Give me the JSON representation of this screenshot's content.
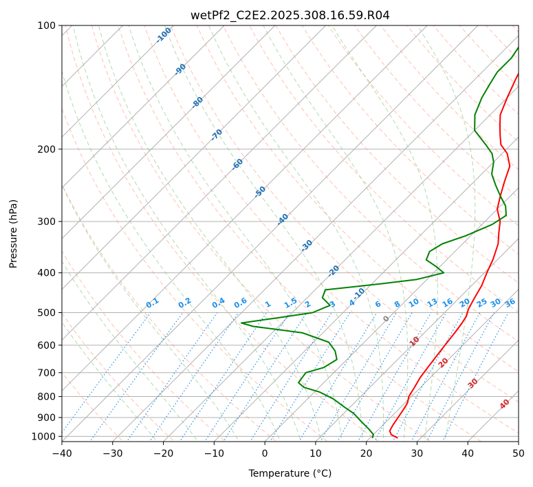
{
  "chart_data": {
    "type": "line",
    "subtype": "skew-T log-P diagram",
    "title": "wetPf2_C2E2.2025.308.16.59.R04",
    "xlabel": "Temperature (°C)",
    "ylabel": "Pressure (hPa)",
    "xlim": [
      -40,
      50
    ],
    "ylim": [
      1030,
      100
    ],
    "y_scale": "log",
    "grid": true,
    "x_ticks": [
      "−40",
      "−30",
      "−20",
      "−10",
      "0",
      "10",
      "20",
      "30",
      "40",
      "50"
    ],
    "y_ticks": [
      "100",
      "200",
      "300",
      "400",
      "500",
      "600",
      "700",
      "800",
      "900",
      "1000"
    ],
    "series": [
      {
        "color": "#ff0000",
        "role": "temperature",
        "points": [
          [
            25.5,
            1010
          ],
          [
            23.5,
            990
          ],
          [
            22.5,
            970
          ],
          [
            22,
            940
          ],
          [
            21.5,
            900
          ],
          [
            21,
            860
          ],
          [
            20.5,
            830
          ],
          [
            19.5,
            800
          ],
          [
            18.8,
            760
          ],
          [
            18,
            720
          ],
          [
            17.5,
            680
          ],
          [
            17,
            640
          ],
          [
            16.5,
            600
          ],
          [
            16,
            560
          ],
          [
            15.5,
            530
          ],
          [
            15,
            510
          ],
          [
            14,
            490
          ],
          [
            13,
            460
          ],
          [
            12,
            430
          ],
          [
            10.5,
            400
          ],
          [
            9,
            370
          ],
          [
            7,
            340
          ],
          [
            5,
            320
          ],
          [
            3,
            300
          ],
          [
            0,
            280
          ],
          [
            -2,
            260
          ],
          [
            -4,
            240
          ],
          [
            -6,
            220
          ],
          [
            -9,
            205
          ],
          [
            -12,
            195
          ],
          [
            -14,
            185
          ],
          [
            -16,
            175
          ],
          [
            -18,
            165
          ],
          [
            -20,
            150
          ],
          [
            -22,
            135
          ],
          [
            -24,
            120
          ],
          [
            -25,
            110
          ],
          [
            -26,
            100
          ]
        ]
      },
      {
        "color": "#008000",
        "role": "dewpoint",
        "points": [
          [
            20.5,
            1010
          ],
          [
            20,
            990
          ],
          [
            18,
            960
          ],
          [
            15,
            920
          ],
          [
            12,
            880
          ],
          [
            9,
            850
          ],
          [
            5,
            810
          ],
          [
            1,
            780
          ],
          [
            -3,
            760
          ],
          [
            -5,
            740
          ],
          [
            -5.5,
            700
          ],
          [
            -3,
            680
          ],
          [
            -2,
            650
          ],
          [
            -4,
            620
          ],
          [
            -7,
            590
          ],
          [
            -14,
            560
          ],
          [
            -25,
            540
          ],
          [
            -28,
            530
          ],
          [
            -22,
            515
          ],
          [
            -16,
            500
          ],
          [
            -14,
            480
          ],
          [
            -17,
            460
          ],
          [
            -18,
            440
          ],
          [
            -8,
            425
          ],
          [
            -2,
            415
          ],
          [
            2,
            400
          ],
          [
            -1,
            385
          ],
          [
            -4,
            372
          ],
          [
            -5,
            355
          ],
          [
            -4,
            340
          ],
          [
            -1,
            325
          ],
          [
            2,
            305
          ],
          [
            3,
            290
          ],
          [
            1,
            275
          ],
          [
            -2,
            260
          ],
          [
            -5,
            245
          ],
          [
            -8,
            230
          ],
          [
            -10,
            215
          ],
          [
            -12,
            205
          ],
          [
            -15,
            195
          ],
          [
            -20,
            180
          ],
          [
            -23,
            165
          ],
          [
            -25,
            150
          ],
          [
            -26,
            140
          ],
          [
            -27,
            130
          ],
          [
            -27,
            120
          ],
          [
            -28,
            110
          ],
          [
            -29,
            100
          ]
        ]
      }
    ],
    "background_lines": {
      "isotherms_color": "#b0b0b0",
      "dry_adiabats_color": "#ff8c69",
      "moist_adiabats_color": "#8fca8f",
      "mixing_ratio_color": "#1f8fe8",
      "cape_shading": "none",
      "isotherm_labels": [
        "-100",
        "-90",
        "-80",
        "-70",
        "-60",
        "-50",
        "-40",
        "-30",
        "-20",
        "-10"
      ],
      "isotherm_label_color": "#1f6fb4",
      "mixing_ratio_labels": [
        "0.1",
        "0.2",
        "0.4",
        "0.6",
        "1",
        "1.5",
        "2",
        "3",
        "4",
        "6",
        "8",
        "10",
        "13",
        "16",
        "20",
        "25",
        "30",
        "36"
      ],
      "mixing_ratio_label_color": "#1f8fe8",
      "dry_adiabat_labels": [
        "0",
        "10",
        "20",
        "30",
        "40"
      ],
      "dry_adiabat_label_colors": [
        "#888888",
        "#d62728",
        "#d62728",
        "#d62728",
        "#d62728"
      ]
    }
  }
}
